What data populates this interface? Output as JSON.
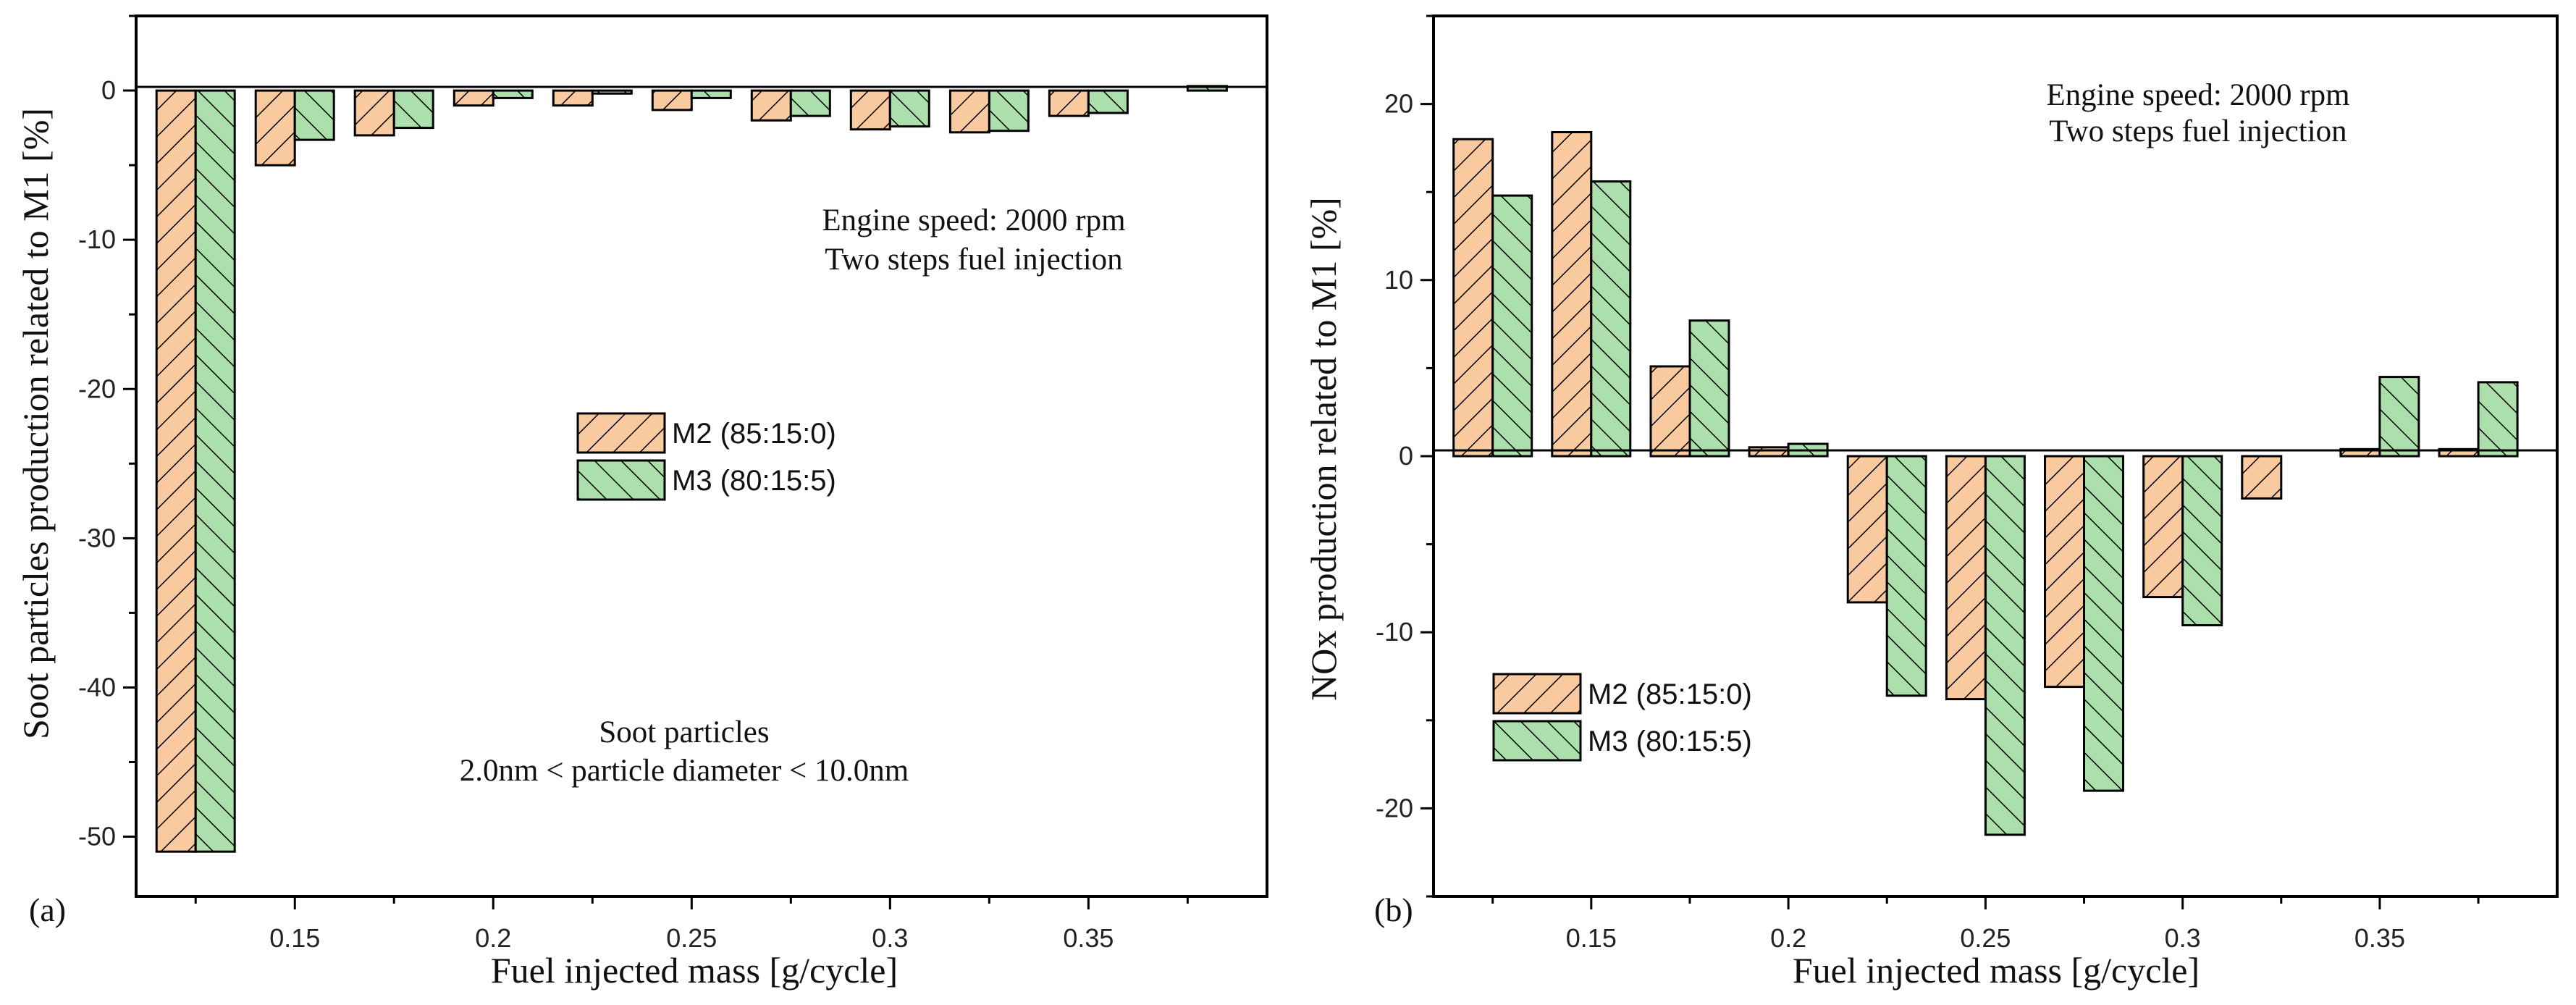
{
  "colors": {
    "M2": "#f9c9a0",
    "M3": "#abdfab"
  },
  "chart_data": [
    {
      "type": "bar",
      "panel_label": "(a)",
      "xlabel": "Fuel injected mass [g/cycle]",
      "ylabel": "Soot particles production related to M1 [%]",
      "categories": [
        0.125,
        0.15,
        0.175,
        0.2,
        0.225,
        0.25,
        0.275,
        0.3,
        0.325,
        0.35,
        0.375
      ],
      "x_ticks": [
        "0.15",
        "0.2",
        "0.25",
        "0.3",
        "0.35"
      ],
      "y_ticks": [
        "0",
        "-10",
        "-20",
        "-30",
        "-40",
        "-50"
      ],
      "ylim": [
        -54,
        5
      ],
      "series": [
        {
          "name": "M2 (85:15:0)",
          "pattern": "hatch-fwd",
          "values": [
            -51,
            -5,
            -3,
            -1,
            -1,
            -1.3,
            -2,
            -2.6,
            -2.8,
            -1.7,
            0
          ]
        },
        {
          "name": "M3 (80:15:5)",
          "pattern": "hatch-back",
          "values": [
            -51,
            -3.3,
            -2.5,
            -0.5,
            -0.2,
            -0.5,
            -1.7,
            -2.4,
            -2.7,
            -1.5,
            0.3
          ]
        }
      ],
      "annotations": [
        "Engine speed: 2000 rpm",
        "Two steps fuel injection",
        "Soot particles",
        "2.0nm < particle diameter < 10.0nm"
      ]
    },
    {
      "type": "bar",
      "panel_label": "(b)",
      "xlabel": "Fuel injected mass [g/cycle]",
      "ylabel": "NOx production related to M1 [%]",
      "categories": [
        0.125,
        0.15,
        0.175,
        0.2,
        0.225,
        0.25,
        0.275,
        0.3,
        0.325,
        0.35,
        0.375
      ],
      "x_ticks": [
        "0.15",
        "0.2",
        "0.25",
        "0.3",
        "0.35"
      ],
      "y_ticks": [
        "20",
        "10",
        "0",
        "-10",
        "-20"
      ],
      "ylim": [
        -25,
        25
      ],
      "series": [
        {
          "name": "M2 (85:15:0)",
          "pattern": "hatch-fwd",
          "values": [
            18,
            18.4,
            5.1,
            0.5,
            -8.3,
            -13.8,
            -13.1,
            -8,
            -2.4,
            0.4,
            0.4
          ]
        },
        {
          "name": "M3 (80:15:5)",
          "pattern": "hatch-back",
          "values": [
            14.8,
            15.6,
            7.7,
            0.7,
            -13.6,
            -21.5,
            -19,
            -9.6,
            0,
            4.5,
            4.2
          ]
        }
      ],
      "annotations": [
        "Engine speed: 2000 rpm",
        "Two steps fuel injection"
      ]
    }
  ]
}
